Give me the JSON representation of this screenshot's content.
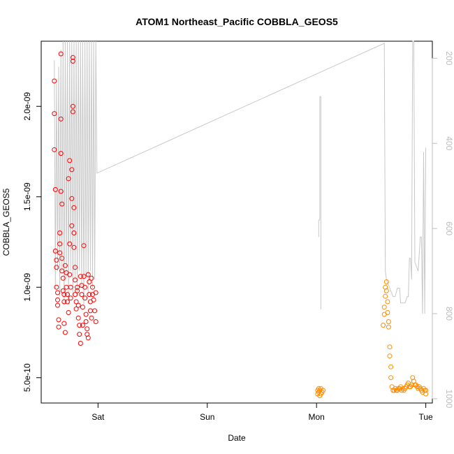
{
  "chart_data": {
    "type": "scatter",
    "title": "ATOM1 Northeast_Pacific COBBLA_GEOS5",
    "xlabel": "Date",
    "ylabel": "COBBLA_GEOS5",
    "x_tick_labels": [
      "Sat",
      "Sun",
      "Mon",
      "Tue"
    ],
    "x_tick_positions_days": [
      0,
      1,
      2,
      3
    ],
    "xlim_days": [
      -0.52,
      3.06
    ],
    "y_tick_labels": [
      "5.0e-10",
      "1.0e-09",
      "1.5e-09",
      "2.0e-09"
    ],
    "y_tick_values": [
      5e-10,
      1e-09,
      1.5e-09,
      2e-09
    ],
    "ylim": [
      3.6e-10,
      2.36e-09
    ],
    "right_axis": {
      "tick_labels": [
        "200",
        "400",
        "600",
        "800",
        "1000"
      ],
      "tick_values": [
        200,
        400,
        600,
        800,
        1000
      ],
      "ylim_reversed": [
        1010,
        160
      ],
      "color": "#bdbdbd",
      "series": {
        "name": "",
        "color": "#c8c8c8",
        "points": [
          [
            -0.4,
            205
          ],
          [
            -0.39,
            740
          ],
          [
            -0.38,
            260
          ],
          [
            -0.37,
            700
          ],
          [
            -0.36,
            220
          ],
          [
            -0.35,
            760
          ],
          [
            -0.34,
            180
          ],
          [
            -0.33,
            700
          ],
          [
            -0.32,
            160
          ],
          [
            -0.31,
            780
          ],
          [
            -0.3,
            160
          ],
          [
            -0.29,
            720
          ],
          [
            -0.28,
            160
          ],
          [
            -0.27,
            780
          ],
          [
            -0.26,
            160
          ],
          [
            -0.25,
            700
          ],
          [
            -0.24,
            160
          ],
          [
            -0.23,
            760
          ],
          [
            -0.22,
            160
          ],
          [
            -0.21,
            720
          ],
          [
            -0.2,
            160
          ],
          [
            -0.19,
            760
          ],
          [
            -0.18,
            160
          ],
          [
            -0.17,
            700
          ],
          [
            -0.16,
            160
          ],
          [
            -0.15,
            740
          ],
          [
            -0.14,
            160
          ],
          [
            -0.13,
            780
          ],
          [
            -0.12,
            160
          ],
          [
            -0.11,
            720
          ],
          [
            -0.1,
            160
          ],
          [
            -0.09,
            760
          ],
          [
            -0.08,
            160
          ],
          [
            -0.07,
            700
          ],
          [
            -0.06,
            160
          ],
          [
            -0.05,
            740
          ],
          [
            -0.04,
            160
          ],
          [
            -0.03,
            720
          ],
          [
            -0.02,
            160
          ],
          [
            -0.01,
            470
          ],
          [
            2.62,
            165
          ],
          [
            2.63,
            700
          ],
          [
            2.64,
            720
          ],
          [
            2.67,
            740
          ],
          [
            2.7,
            760
          ],
          [
            2.72,
            760
          ],
          [
            2.74,
            740
          ],
          [
            2.76,
            740
          ],
          [
            2.77,
            775
          ],
          [
            2.81,
            775
          ],
          [
            2.83,
            760
          ],
          [
            2.84,
            760
          ],
          [
            2.85,
            670
          ],
          [
            2.86,
            670
          ],
          [
            2.87,
            720
          ],
          [
            2.88,
            160
          ],
          [
            2.89,
            160
          ],
          [
            2.9,
            680
          ],
          [
            2.93,
            700
          ],
          [
            2.95,
            620
          ],
          [
            2.96,
            620
          ],
          [
            2.97,
            800
          ],
          [
            2.98,
            420
          ],
          [
            2.99,
            800
          ],
          [
            3.0,
            410
          ]
        ],
        "extra_segments": [
          [
            [
              2.02,
              620
            ],
            [
              2.02,
              580
            ],
            [
              2.03,
              580
            ],
            [
              2.03,
              290
            ],
            [
              2.04,
              290
            ],
            [
              2.04,
              790
            ]
          ]
        ]
      }
    },
    "series": [
      {
        "name": "",
        "color": "#ff0000",
        "points": [
          [
            -0.4,
            2.14e-09
          ],
          [
            -0.4,
            1.96e-09
          ],
          [
            -0.4,
            1.76e-09
          ],
          [
            -0.39,
            1.54e-09
          ],
          [
            -0.39,
            1.2e-09
          ],
          [
            -0.38,
            1.15e-09
          ],
          [
            -0.38,
            1.11e-09
          ],
          [
            -0.38,
            1e-09
          ],
          [
            -0.37,
            9.7e-10
          ],
          [
            -0.37,
            9.3e-10
          ],
          [
            -0.37,
            9e-10
          ],
          [
            -0.36,
            8.2e-10
          ],
          [
            -0.36,
            7.8e-10
          ],
          [
            -0.35,
            1.3e-09
          ],
          [
            -0.35,
            1.24e-09
          ],
          [
            -0.35,
            1.19e-09
          ],
          [
            -0.34,
            2.29e-09
          ],
          [
            -0.34,
            1.93e-09
          ],
          [
            -0.34,
            1.74e-09
          ],
          [
            -0.34,
            1.53e-09
          ],
          [
            -0.33,
            1.46e-09
          ],
          [
            -0.33,
            1.16e-09
          ],
          [
            -0.33,
            1.09e-09
          ],
          [
            -0.32,
            1.05e-09
          ],
          [
            -0.32,
            9.8e-10
          ],
          [
            -0.31,
            9.6e-10
          ],
          [
            -0.31,
            9.2e-10
          ],
          [
            -0.31,
            8e-10
          ],
          [
            -0.3,
            7.5e-10
          ],
          [
            -0.3,
            1.12e-09
          ],
          [
            -0.29,
            1.08e-09
          ],
          [
            -0.29,
            1e-09
          ],
          [
            -0.28,
            9.6e-10
          ],
          [
            -0.28,
            9.2e-10
          ],
          [
            -0.27,
            8.6e-10
          ],
          [
            -0.27,
            1.6e-09
          ],
          [
            -0.26,
            1.7e-09
          ],
          [
            -0.26,
            1.24e-09
          ],
          [
            -0.26,
            1.07e-09
          ],
          [
            -0.25,
            1e-09
          ],
          [
            -0.25,
            9.4e-10
          ],
          [
            -0.24,
            1.65e-09
          ],
          [
            -0.24,
            1.49e-09
          ],
          [
            -0.24,
            1.34e-09
          ],
          [
            -0.23,
            2.27e-09
          ],
          [
            -0.23,
            2.25e-09
          ],
          [
            -0.23,
            2e-09
          ],
          [
            -0.23,
            1.97e-09
          ],
          [
            -0.22,
            1.44e-09
          ],
          [
            -0.22,
            1.3e-09
          ],
          [
            -0.22,
            1.22e-09
          ],
          [
            -0.21,
            1.11e-09
          ],
          [
            -0.21,
            1.04e-09
          ],
          [
            -0.21,
            9.6e-10
          ],
          [
            -0.2,
            9.2e-10
          ],
          [
            -0.2,
            8.8e-10
          ],
          [
            -0.19,
            1e-09
          ],
          [
            -0.19,
            9.8e-10
          ],
          [
            -0.18,
            9e-10
          ],
          [
            -0.18,
            8.3e-10
          ],
          [
            -0.17,
            7.9e-10
          ],
          [
            -0.17,
            7.4e-10
          ],
          [
            -0.16,
            6.9e-10
          ],
          [
            -0.16,
            1.06e-09
          ],
          [
            -0.15,
            1.01e-09
          ],
          [
            -0.15,
            9.6e-10
          ],
          [
            -0.14,
            8.9e-10
          ],
          [
            -0.14,
            7.9e-10
          ],
          [
            -0.13,
            1.23e-09
          ],
          [
            -0.13,
            1.06e-09
          ],
          [
            -0.12,
            1e-09
          ],
          [
            -0.12,
            9.4e-10
          ],
          [
            -0.11,
            8.5e-10
          ],
          [
            -0.11,
            8.1e-10
          ],
          [
            -0.1,
            7.7e-10
          ],
          [
            -0.1,
            7.4e-10
          ],
          [
            -0.09,
            7.2e-10
          ],
          [
            -0.09,
            1.07e-09
          ],
          [
            -0.08,
            1.03e-09
          ],
          [
            -0.08,
            9.6e-10
          ],
          [
            -0.07,
            9.2e-10
          ],
          [
            -0.07,
            8.7e-10
          ],
          [
            -0.06,
            8.3e-10
          ],
          [
            -0.06,
            1.05e-09
          ],
          [
            -0.05,
            1e-09
          ],
          [
            -0.05,
            9.6e-10
          ],
          [
            -0.04,
            9.3e-10
          ],
          [
            -0.03,
            8.7e-10
          ],
          [
            -0.02,
            8.1e-10
          ],
          [
            -0.02,
            9.7e-10
          ]
        ]
      },
      {
        "name": "",
        "color": "#ff8c00",
        "points": [
          [
            2.01,
            4.3e-10
          ],
          [
            2.01,
            4.1e-10
          ],
          [
            2.02,
            4.4e-10
          ],
          [
            2.02,
            4.2e-10
          ],
          [
            2.03,
            4e-10
          ],
          [
            2.03,
            4.3e-10
          ],
          [
            2.04,
            4.4e-10
          ],
          [
            2.04,
            4.1e-10
          ],
          [
            2.05,
            4.2e-10
          ],
          [
            2.06,
            4.3e-10
          ],
          [
            2.61,
            7.9e-10
          ],
          [
            2.62,
            8.5e-10
          ],
          [
            2.62,
            8.9e-10
          ],
          [
            2.63,
            9.5e-10
          ],
          [
            2.63,
            1e-09
          ],
          [
            2.64,
            1.03e-09
          ],
          [
            2.64,
            9.8e-10
          ],
          [
            2.65,
            9.2e-10
          ],
          [
            2.65,
            8.6e-10
          ],
          [
            2.66,
            8.1e-10
          ],
          [
            2.66,
            7.8e-10
          ],
          [
            2.67,
            6.7e-10
          ],
          [
            2.67,
            6.2e-10
          ],
          [
            2.68,
            5.6e-10
          ],
          [
            2.68,
            5e-10
          ],
          [
            2.69,
            4.5e-10
          ],
          [
            2.7,
            4.3e-10
          ],
          [
            2.71,
            4.3e-10
          ],
          [
            2.72,
            4.4e-10
          ],
          [
            2.73,
            4.3e-10
          ],
          [
            2.74,
            4.3e-10
          ],
          [
            2.75,
            4.4e-10
          ],
          [
            2.76,
            4.4e-10
          ],
          [
            2.77,
            4.5e-10
          ],
          [
            2.78,
            4.3e-10
          ],
          [
            2.79,
            4.4e-10
          ],
          [
            2.8,
            4.3e-10
          ],
          [
            2.81,
            4.4e-10
          ],
          [
            2.82,
            4.5e-10
          ],
          [
            2.83,
            4.6e-10
          ],
          [
            2.84,
            4.7e-10
          ],
          [
            2.85,
            4.5e-10
          ],
          [
            2.86,
            4.5e-10
          ],
          [
            2.87,
            4.6e-10
          ],
          [
            2.88,
            5e-10
          ],
          [
            2.89,
            4.8e-10
          ],
          [
            2.9,
            4.6e-10
          ],
          [
            2.91,
            4.6e-10
          ],
          [
            2.92,
            4.5e-10
          ],
          [
            2.93,
            4.4e-10
          ],
          [
            2.94,
            4.5e-10
          ],
          [
            2.95,
            4.4e-10
          ],
          [
            2.96,
            4.3e-10
          ],
          [
            2.97,
            4.2e-10
          ],
          [
            2.98,
            4.4e-10
          ],
          [
            2.99,
            4.3e-10
          ],
          [
            3.0,
            4.1e-10
          ],
          [
            3.0,
            4.3e-10
          ]
        ]
      }
    ],
    "grid": false,
    "legend": "none"
  }
}
